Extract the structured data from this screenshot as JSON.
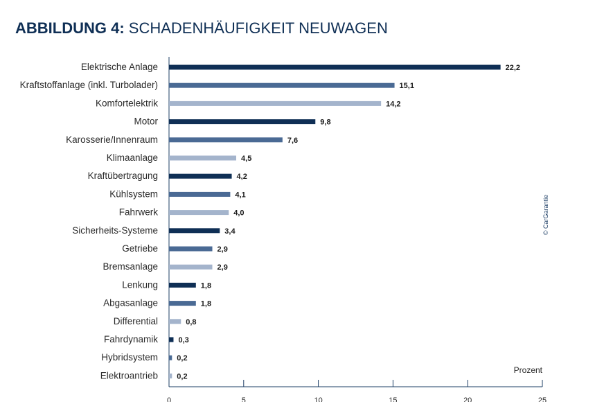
{
  "heading": {
    "bold": "ABBILDUNG 4:",
    "rest": " SCHADENHÄUFIGKEIT NEUWAGEN"
  },
  "copyright": "© CarGarantie",
  "colors": {
    "dark": "#0f2f55",
    "medium": "#4a6a94",
    "light": "#a4b4cc",
    "title": "#0f2f55",
    "axis": "#1e3f66"
  },
  "chart_data": {
    "type": "bar",
    "orientation": "horizontal",
    "title": "SCHADENHÄUFIGKEIT NEUWAGEN",
    "xlabel": "Prozent",
    "ylabel": "",
    "xlim": [
      0,
      25
    ],
    "xticks": [
      0,
      5,
      10,
      15,
      20,
      25
    ],
    "grid": false,
    "categories": [
      "Elektrische Anlage",
      "Kraftstoffanlage (inkl. Turbolader)",
      "Komfortelektrik",
      "Motor",
      "Karosserie/Innenraum",
      "Klimaanlage",
      "Kraftübertragung",
      "Kühlsystem",
      "Fahrwerk",
      "Sicherheits-Systeme",
      "Getriebe",
      "Bremsanlage",
      "Lenkung",
      "Abgasanlage",
      "Differential",
      "Fahrdynamik",
      "Hybridsystem",
      "Elektroantrieb"
    ],
    "values": [
      22.2,
      15.1,
      14.2,
      9.8,
      7.6,
      4.5,
      4.2,
      4.1,
      4.0,
      3.4,
      2.9,
      2.9,
      1.8,
      1.8,
      0.8,
      0.3,
      0.2,
      0.2
    ],
    "value_labels": [
      "22,2",
      "15,1",
      "14,2",
      "9,8",
      "7,6",
      "4,5",
      "4,2",
      "4,1",
      "4,0",
      "3,4",
      "2,9",
      "2,9",
      "1,8",
      "1,8",
      "0,8",
      "0,3",
      "0,2",
      "0,2"
    ],
    "tick_labels": [
      "0",
      "5",
      "10",
      "15",
      "20",
      "25"
    ],
    "bar_color_cycle": [
      "dark",
      "medium",
      "light"
    ]
  }
}
